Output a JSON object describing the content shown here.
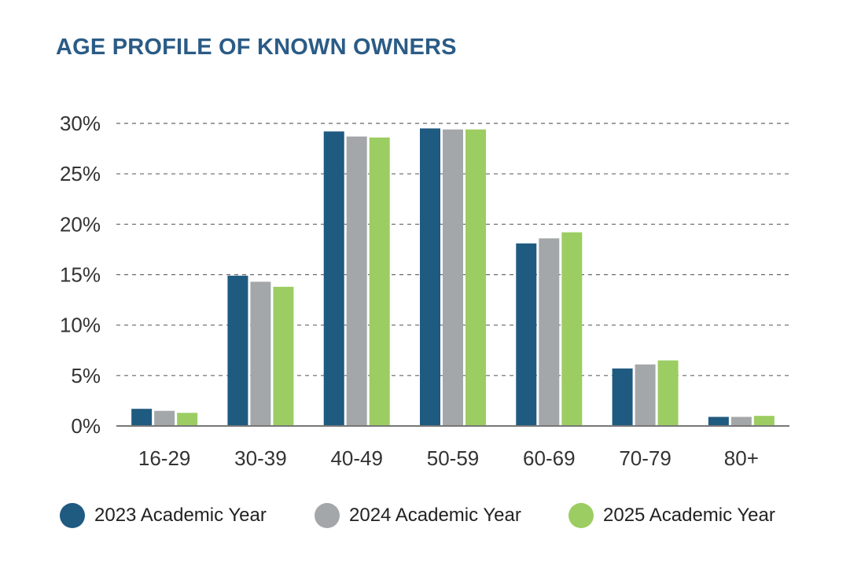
{
  "chart_data": {
    "type": "bar",
    "title": "AGE PROFILE OF KNOWN OWNERS",
    "xlabel": "",
    "ylabel": "",
    "ylim": [
      0,
      30
    ],
    "yticks": [
      "0%",
      "5%",
      "10%",
      "15%",
      "20%",
      "25%",
      "30%"
    ],
    "ytick_values": [
      0,
      5,
      10,
      15,
      20,
      25,
      30
    ],
    "grid": "dashed horizontal",
    "legend_position": "bottom",
    "categories": [
      "16-29",
      "30-39",
      "40-49",
      "50-59",
      "60-69",
      "70-79",
      "80+"
    ],
    "series": [
      {
        "name": "2023 Academic Year",
        "color": "#1f5a80",
        "values": [
          1.7,
          14.9,
          29.2,
          29.5,
          18.1,
          5.7,
          0.9
        ]
      },
      {
        "name": "2024 Academic Year",
        "color": "#a4a7a9",
        "values": [
          1.5,
          14.3,
          28.7,
          29.4,
          18.6,
          6.1,
          0.9
        ]
      },
      {
        "name": "2025 Academic Year",
        "color": "#9ccd62",
        "values": [
          1.3,
          13.8,
          28.6,
          29.4,
          19.2,
          6.5,
          1.0
        ]
      }
    ]
  }
}
